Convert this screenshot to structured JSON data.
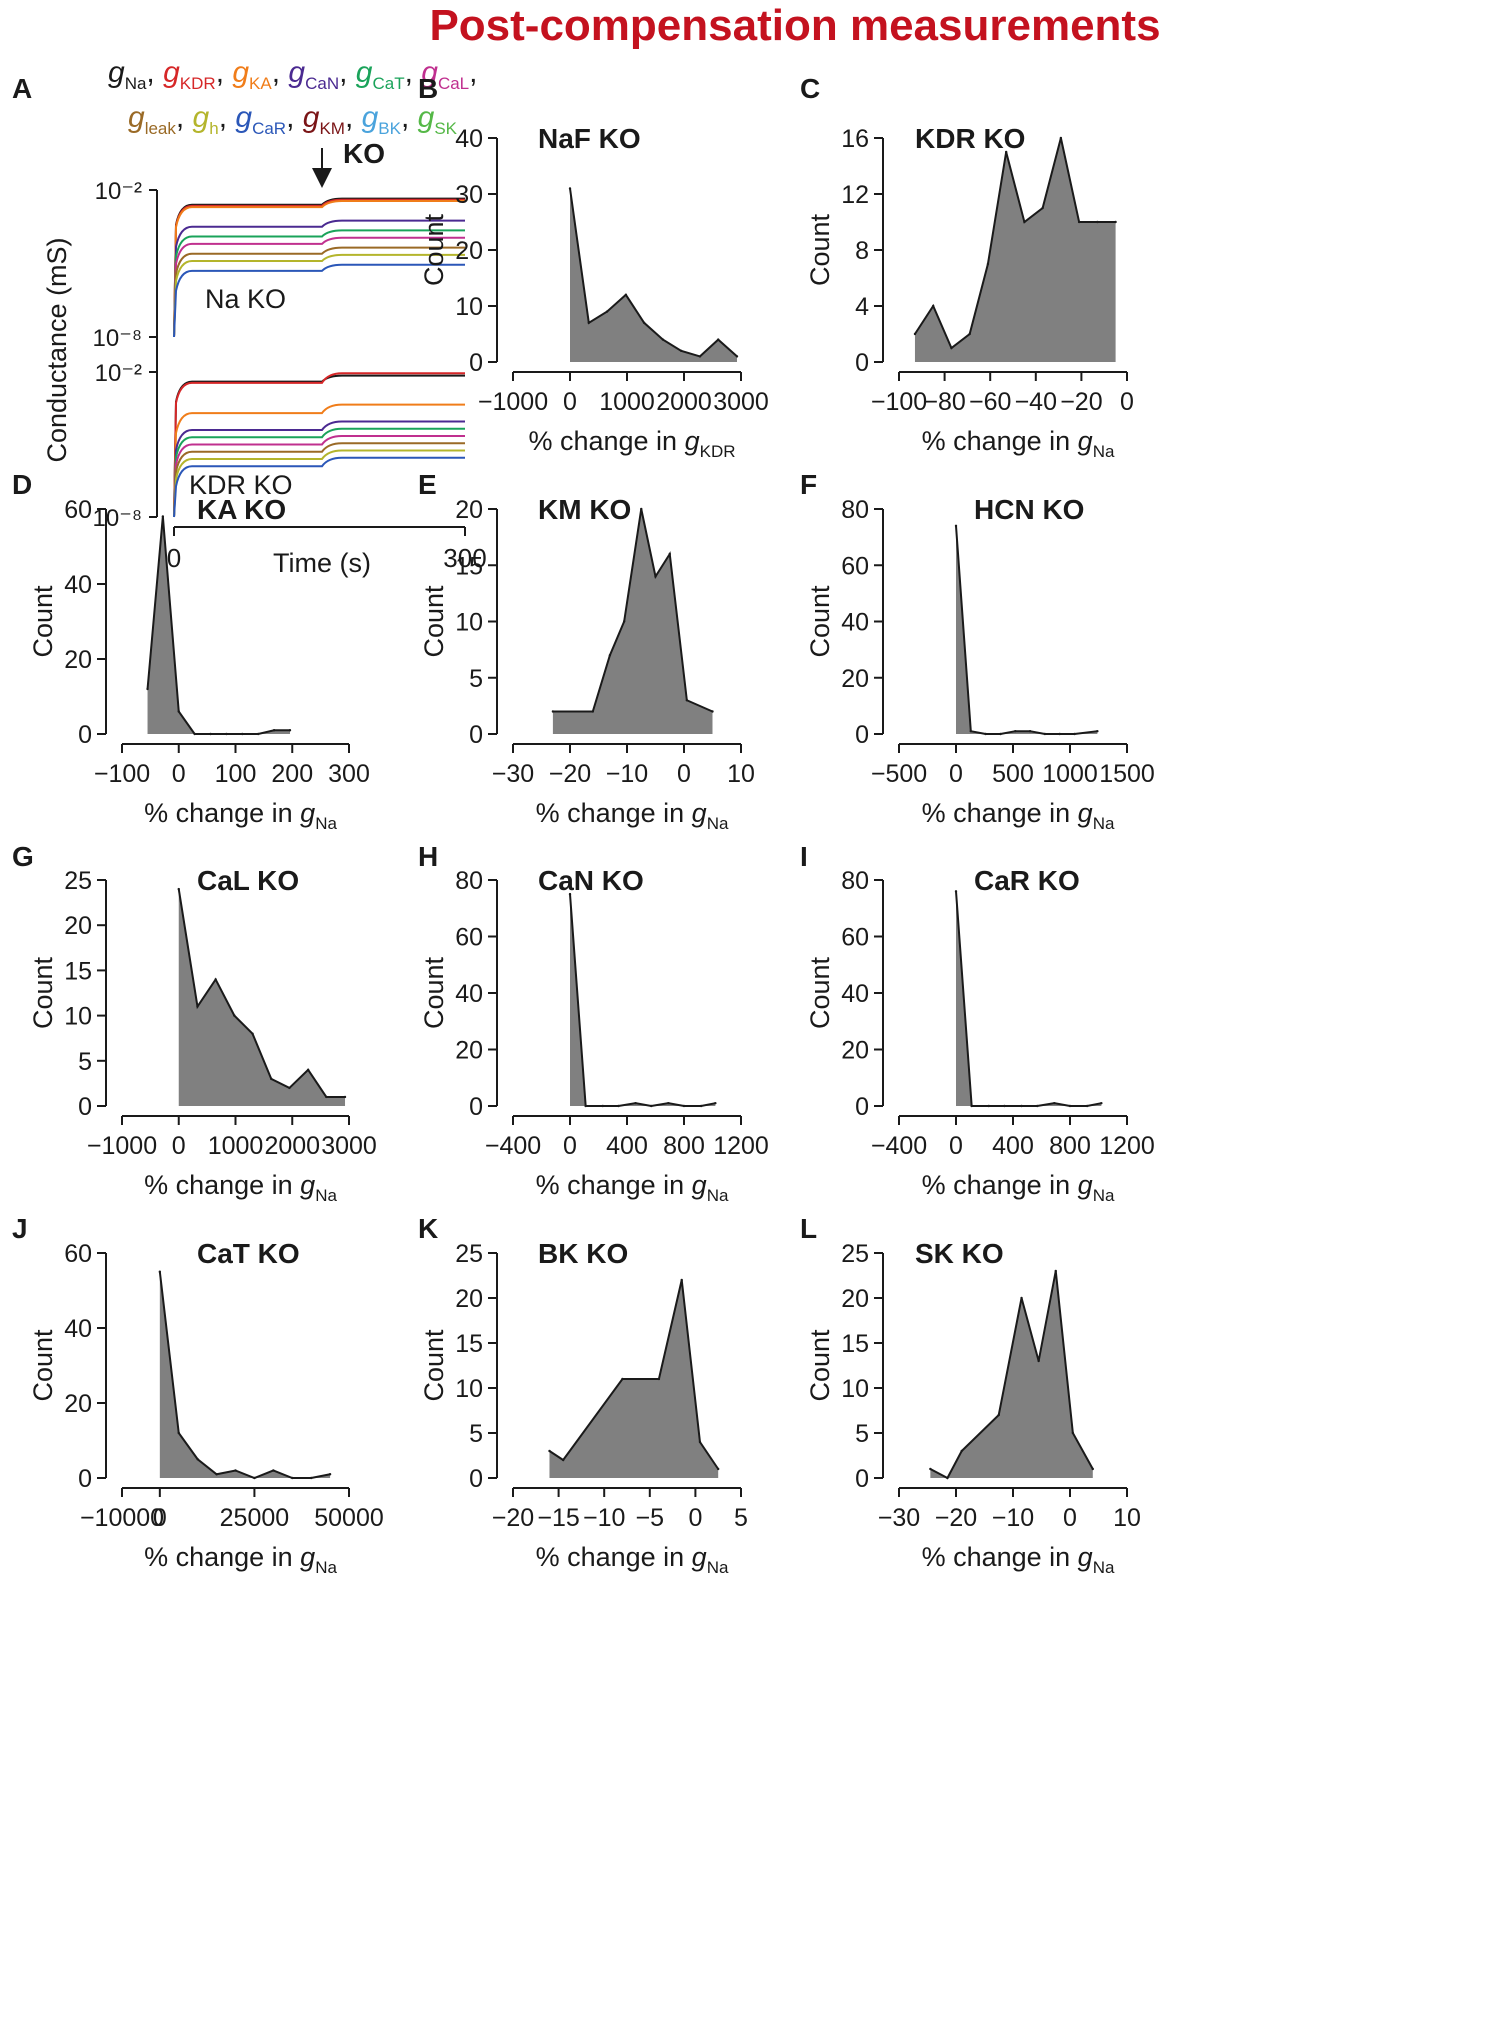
{
  "figure_title": "Post-compensation measurements",
  "ylabel_count": "Count",
  "xlabel_prefix": "% change in g",
  "chart_data": [
    {
      "panel": "A",
      "type": "line",
      "legend_entries": [
        {
          "sub": "Na",
          "color": "#1a1a1a"
        },
        {
          "sub": "KDR",
          "color": "#d62728"
        },
        {
          "sub": "KA",
          "color": "#f07d1a"
        },
        {
          "sub": "CaN",
          "color": "#4b2a91"
        },
        {
          "sub": "CaT",
          "color": "#1aa35a"
        },
        {
          "sub": "CaL",
          "color": "#c0308f"
        },
        {
          "sub": "leak",
          "color": "#9a6a26"
        },
        {
          "sub": "h",
          "color": "#b4b52c"
        },
        {
          "sub": "CaR",
          "color": "#2b57b8"
        },
        {
          "sub": "KM",
          "color": "#7a1416"
        },
        {
          "sub": "BK",
          "color": "#4aa3dc"
        },
        {
          "sub": "SK",
          "color": "#55b847"
        }
      ],
      "ko_marker": "KO",
      "ylabel": "Conductance (mS)",
      "xlabel": "Time (s)",
      "xticks": [
        "0",
        "300"
      ],
      "yticks": [
        "10⁻²",
        "10⁻⁸"
      ],
      "subplots": [
        {
          "label": "Na KO",
          "log_levels": [
            -2.6,
            -2.65,
            -2.7,
            -3.5,
            -3.9,
            -4.2,
            -4.6,
            -4.9,
            -5.3
          ]
        },
        {
          "label": "KDR KO",
          "log_levels": [
            -2.4,
            -2.45,
            -3.7,
            -4.4,
            -4.7,
            -5.0,
            -5.3,
            -5.6,
            -5.9
          ]
        }
      ]
    },
    {
      "panel": "B",
      "type": "area",
      "title": "NaF KO",
      "xvar": "KDR",
      "xlim": [
        -1000,
        3000
      ],
      "xticks": [
        -1000,
        0,
        1000,
        2000,
        3000
      ],
      "ylim": [
        0,
        40
      ],
      "yticks": [
        0,
        10,
        20,
        30,
        40
      ],
      "x": [
        0,
        330,
        650,
        980,
        1300,
        1630,
        1950,
        2280,
        2600,
        2930
      ],
      "y": [
        31,
        7,
        9,
        12,
        7,
        4,
        2,
        1,
        4,
        1
      ]
    },
    {
      "panel": "C",
      "type": "area",
      "title": "KDR KO",
      "xvar": "Na",
      "xlim": [
        -100,
        0
      ],
      "xticks": [
        -100,
        -80,
        -60,
        -40,
        -20,
        0
      ],
      "xticklabels": [
        "−100",
        "−80",
        "−60",
        "−40",
        "−20",
        "0"
      ],
      "ylim": [
        0,
        16
      ],
      "yticks": [
        0,
        4,
        8,
        12,
        16
      ],
      "x": [
        -93,
        -85,
        -77,
        -69,
        -61,
        -53,
        -45,
        -37,
        -29,
        -21,
        -13,
        -5
      ],
      "y": [
        2,
        4,
        1,
        2,
        7,
        15,
        10,
        11,
        16,
        10,
        10,
        10
      ],
      "x_end": -5
    },
    {
      "panel": "D",
      "type": "area",
      "title": "KA KO",
      "xvar": "Na",
      "xlim": [
        -100,
        300
      ],
      "xticks": [
        -100,
        0,
        100,
        200,
        300
      ],
      "ylim": [
        0,
        60
      ],
      "yticks": [
        0,
        20,
        40,
        60
      ],
      "x": [
        -55,
        -28,
        0,
        28,
        56,
        84,
        112,
        140,
        168,
        196
      ],
      "y": [
        12,
        58,
        6,
        0,
        0,
        0,
        0,
        0,
        1,
        1
      ]
    },
    {
      "panel": "E",
      "type": "area",
      "title": "KM KO",
      "xvar": "Na",
      "xlim": [
        -30,
        10
      ],
      "xticks": [
        -30,
        -20,
        -10,
        0,
        10
      ],
      "ylim": [
        0,
        20
      ],
      "yticks": [
        0,
        5,
        10,
        15,
        20
      ],
      "x": [
        -23,
        -16,
        -13,
        -10.5,
        -7.5,
        -5,
        -2.5,
        0.5,
        5
      ],
      "y": [
        2,
        2,
        7,
        10,
        20,
        14,
        16,
        3,
        2
      ]
    },
    {
      "panel": "F",
      "type": "area",
      "title": "HCN KO",
      "xvar": "Na",
      "xlim": [
        -500,
        1500
      ],
      "xticks": [
        -500,
        0,
        500,
        1000,
        1500
      ],
      "ylim": [
        0,
        80
      ],
      "yticks": [
        0,
        20,
        40,
        60,
        80
      ],
      "x": [
        0,
        130,
        260,
        390,
        520,
        650,
        780,
        910,
        1040,
        1240
      ],
      "y": [
        74,
        1,
        0,
        0,
        1,
        1,
        0,
        0,
        0,
        1
      ]
    },
    {
      "panel": "G",
      "type": "area",
      "title": "CaL KO",
      "xvar": "Na",
      "xlim": [
        -1000,
        3000
      ],
      "xticks": [
        -1000,
        0,
        1000,
        2000,
        3000
      ],
      "ylim": [
        0,
        25
      ],
      "yticks": [
        0,
        5,
        10,
        15,
        20,
        25
      ],
      "x": [
        0,
        330,
        650,
        980,
        1300,
        1630,
        1950,
        2280,
        2600,
        2930
      ],
      "y": [
        24,
        11,
        14,
        10,
        8,
        3,
        2,
        4,
        1,
        1
      ]
    },
    {
      "panel": "H",
      "type": "area",
      "title": "CaN KO",
      "xvar": "Na",
      "xlim": [
        -400,
        1200
      ],
      "xticks": [
        -400,
        0,
        400,
        800,
        1200
      ],
      "ylim": [
        0,
        80
      ],
      "yticks": [
        0,
        20,
        40,
        60,
        80
      ],
      "x": [
        0,
        110,
        230,
        340,
        460,
        570,
        690,
        800,
        920,
        1020
      ],
      "y": [
        75,
        0,
        0,
        0,
        1,
        0,
        1,
        0,
        0,
        1
      ]
    },
    {
      "panel": "I",
      "type": "area",
      "title": "CaR KO",
      "xvar": "Na",
      "xlim": [
        -400,
        1200
      ],
      "xticks": [
        -400,
        0,
        400,
        800,
        1200
      ],
      "ylim": [
        0,
        80
      ],
      "yticks": [
        0,
        20,
        40,
        60,
        80
      ],
      "x": [
        0,
        110,
        230,
        340,
        460,
        570,
        690,
        800,
        920,
        1020
      ],
      "y": [
        76,
        0,
        0,
        0,
        0,
        0,
        1,
        0,
        0,
        1
      ]
    },
    {
      "panel": "J",
      "type": "area",
      "title": "CaT KO",
      "xvar": "Na",
      "xlim": [
        -10000,
        50000
      ],
      "xticks": [
        -10000,
        0,
        25000,
        50000
      ],
      "ylim": [
        0,
        60
      ],
      "yticks": [
        0,
        20,
        40,
        60
      ],
      "x": [
        0,
        5000,
        10000,
        15000,
        20000,
        25000,
        30000,
        35000,
        40000,
        45000
      ],
      "y": [
        55,
        12,
        5,
        1,
        2,
        0,
        2,
        0,
        0,
        1
      ]
    },
    {
      "panel": "K",
      "type": "area",
      "title": "BK KO",
      "xvar": "Na",
      "xlim": [
        -20,
        5
      ],
      "xticks": [
        -20,
        -15,
        -10,
        -5,
        0,
        5
      ],
      "ylim": [
        0,
        25
      ],
      "yticks": [
        0,
        5,
        10,
        15,
        20,
        25
      ],
      "x": [
        -16,
        -14.5,
        -8,
        -4,
        -1.5,
        0.5,
        2.5
      ],
      "y": [
        3,
        2,
        11,
        11,
        22,
        4,
        1
      ]
    },
    {
      "panel": "L",
      "type": "area",
      "title": "SK KO",
      "xvar": "Na",
      "xlim": [
        -30,
        10
      ],
      "xticks": [
        -30,
        -20,
        -10,
        0,
        10
      ],
      "ylim": [
        0,
        25
      ],
      "yticks": [
        0,
        5,
        10,
        15,
        20,
        25
      ],
      "x": [
        -24.5,
        -21.5,
        -19,
        -12.5,
        -8.5,
        -5.5,
        -2.5,
        0.5,
        4
      ],
      "y": [
        1,
        0,
        3,
        7,
        20,
        13,
        23,
        5,
        1
      ]
    }
  ]
}
